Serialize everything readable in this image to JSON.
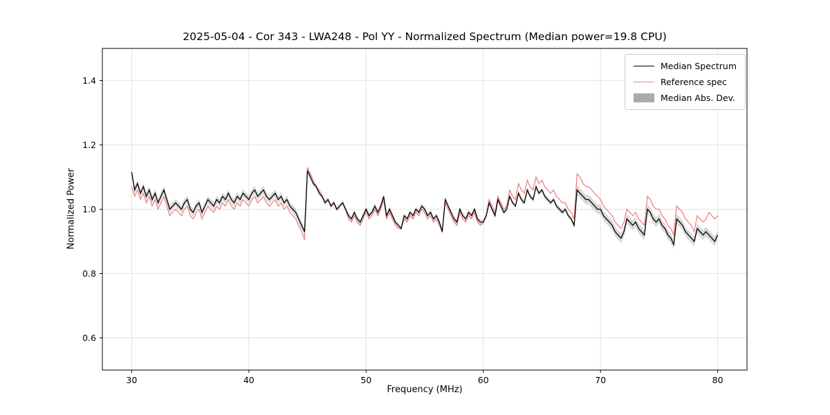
{
  "figure": {
    "title": "2025-05-04 - Cor 343 - LWA248 - Pol YY - Normalized Spectrum (Median power=19.8 CPU)",
    "xlabel": "Frequency (MHz)",
    "ylabel": "Normalized Power",
    "legend": [
      {
        "label": "Median Spectrum",
        "color": "#000000",
        "type": "line"
      },
      {
        "label": "Reference spec",
        "color": "#f08080",
        "type": "line"
      },
      {
        "label": "Median Abs. Dev.",
        "color": "#aaaaaa",
        "type": "patch"
      }
    ]
  },
  "chart_data": {
    "type": "line",
    "title": "2025-05-04 - Cor 343 - LWA248 - Pol YY - Normalized Spectrum (Median power=19.8 CPU)",
    "xlabel": "Frequency (MHz)",
    "ylabel": "Normalized Power",
    "xlim": [
      27.5,
      82.5
    ],
    "ylim": [
      0.5,
      1.5
    ],
    "xticks": [
      30,
      40,
      50,
      60,
      70,
      80
    ],
    "yticks": [
      0.6,
      0.8,
      1.0,
      1.2,
      1.4
    ],
    "grid": true,
    "legend_position": "upper right",
    "x": [
      30.0,
      30.25,
      30.5,
      30.75,
      31.0,
      31.25,
      31.5,
      31.75,
      32.0,
      32.25,
      32.5,
      32.75,
      33.0,
      33.25,
      33.5,
      33.75,
      34.0,
      34.25,
      34.5,
      34.75,
      35.0,
      35.25,
      35.5,
      35.75,
      36.0,
      36.25,
      36.5,
      36.75,
      37.0,
      37.25,
      37.5,
      37.75,
      38.0,
      38.25,
      38.5,
      38.75,
      39.0,
      39.25,
      39.5,
      39.75,
      40.0,
      40.25,
      40.5,
      40.75,
      41.0,
      41.25,
      41.5,
      41.75,
      42.0,
      42.25,
      42.5,
      42.75,
      43.0,
      43.25,
      43.5,
      43.75,
      44.0,
      44.25,
      44.5,
      44.75,
      45.0,
      45.25,
      45.5,
      45.75,
      46.0,
      46.25,
      46.5,
      46.75,
      47.0,
      47.25,
      47.5,
      47.75,
      48.0,
      48.25,
      48.5,
      48.75,
      49.0,
      49.25,
      49.5,
      49.75,
      50.0,
      50.25,
      50.5,
      50.75,
      51.0,
      51.25,
      51.5,
      51.75,
      52.0,
      52.25,
      52.5,
      52.75,
      53.0,
      53.25,
      53.5,
      53.75,
      54.0,
      54.25,
      54.5,
      54.75,
      55.0,
      55.25,
      55.5,
      55.75,
      56.0,
      56.25,
      56.5,
      56.75,
      57.0,
      57.25,
      57.5,
      57.75,
      58.0,
      58.25,
      58.5,
      58.75,
      59.0,
      59.25,
      59.5,
      59.75,
      60.0,
      60.25,
      60.5,
      60.75,
      61.0,
      61.25,
      61.5,
      61.75,
      62.0,
      62.25,
      62.5,
      62.75,
      63.0,
      63.25,
      63.5,
      63.75,
      64.0,
      64.25,
      64.5,
      64.75,
      65.0,
      65.25,
      65.5,
      65.75,
      66.0,
      66.25,
      66.5,
      66.75,
      67.0,
      67.25,
      67.5,
      67.75,
      68.0,
      68.25,
      68.5,
      68.75,
      69.0,
      69.25,
      69.5,
      69.75,
      70.0,
      70.25,
      70.5,
      70.75,
      71.0,
      71.25,
      71.5,
      71.75,
      72.0,
      72.25,
      72.5,
      72.75,
      73.0,
      73.25,
      73.5,
      73.75,
      74.0,
      74.25,
      74.5,
      74.75,
      75.0,
      75.25,
      75.5,
      75.75,
      76.0,
      76.25,
      76.5,
      76.75,
      77.0,
      77.25,
      77.5,
      77.75,
      78.0,
      78.25,
      78.5,
      78.75,
      79.0,
      79.25,
      79.5,
      79.75,
      80.0
    ],
    "series": [
      {
        "name": "Median Spectrum",
        "color": "#000000",
        "values": [
          1.115,
          1.06,
          1.08,
          1.05,
          1.07,
          1.04,
          1.06,
          1.03,
          1.05,
          1.02,
          1.04,
          1.06,
          1.03,
          1.0,
          1.01,
          1.02,
          1.01,
          1.0,
          1.02,
          1.03,
          1.0,
          0.99,
          1.01,
          1.02,
          0.99,
          1.01,
          1.03,
          1.02,
          1.01,
          1.03,
          1.02,
          1.04,
          1.03,
          1.05,
          1.03,
          1.02,
          1.04,
          1.03,
          1.05,
          1.04,
          1.03,
          1.05,
          1.06,
          1.04,
          1.05,
          1.06,
          1.04,
          1.03,
          1.04,
          1.05,
          1.03,
          1.04,
          1.02,
          1.03,
          1.01,
          1.0,
          0.99,
          0.97,
          0.95,
          0.93,
          1.12,
          1.1,
          1.08,
          1.07,
          1.05,
          1.04,
          1.02,
          1.03,
          1.01,
          1.02,
          1.0,
          1.01,
          1.02,
          1.0,
          0.98,
          0.97,
          0.99,
          0.97,
          0.96,
          0.98,
          1.0,
          0.98,
          0.99,
          1.01,
          0.99,
          1.01,
          1.04,
          0.98,
          1.0,
          0.98,
          0.96,
          0.95,
          0.94,
          0.98,
          0.97,
          0.99,
          0.98,
          1.0,
          0.99,
          1.01,
          1.0,
          0.98,
          0.99,
          0.97,
          0.98,
          0.96,
          0.93,
          1.03,
          1.01,
          0.99,
          0.97,
          0.96,
          1.0,
          0.98,
          0.97,
          0.99,
          0.98,
          1.0,
          0.97,
          0.96,
          0.96,
          0.98,
          1.02,
          1.0,
          0.98,
          1.03,
          1.01,
          0.99,
          1.0,
          1.04,
          1.02,
          1.01,
          1.05,
          1.03,
          1.02,
          1.06,
          1.04,
          1.03,
          1.07,
          1.05,
          1.06,
          1.04,
          1.03,
          1.02,
          1.03,
          1.01,
          1.0,
          0.99,
          1.0,
          0.98,
          0.97,
          0.95,
          1.06,
          1.05,
          1.04,
          1.03,
          1.03,
          1.02,
          1.01,
          1.0,
          1.0,
          0.98,
          0.97,
          0.96,
          0.95,
          0.93,
          0.92,
          0.91,
          0.93,
          0.97,
          0.96,
          0.95,
          0.96,
          0.94,
          0.93,
          0.92,
          1.0,
          0.99,
          0.97,
          0.96,
          0.97,
          0.95,
          0.94,
          0.92,
          0.91,
          0.89,
          0.97,
          0.96,
          0.95,
          0.93,
          0.92,
          0.91,
          0.9,
          0.94,
          0.93,
          0.92,
          0.93,
          0.92,
          0.91,
          0.9,
          0.92
        ]
      },
      {
        "name": "Reference spec",
        "color": "#f08080",
        "values": [
          1.07,
          1.04,
          1.06,
          1.03,
          1.05,
          1.02,
          1.04,
          1.01,
          1.03,
          1.0,
          1.02,
          1.04,
          1.01,
          0.98,
          0.99,
          1.0,
          0.99,
          0.98,
          1.0,
          1.01,
          0.98,
          0.97,
          0.99,
          1.0,
          0.97,
          0.99,
          1.01,
          1.0,
          0.99,
          1.01,
          1.0,
          1.02,
          1.01,
          1.03,
          1.01,
          1.0,
          1.02,
          1.01,
          1.03,
          1.02,
          1.01,
          1.03,
          1.04,
          1.02,
          1.03,
          1.04,
          1.02,
          1.01,
          1.02,
          1.03,
          1.01,
          1.02,
          1.0,
          1.01,
          0.99,
          0.98,
          0.97,
          0.95,
          0.93,
          0.905,
          1.13,
          1.11,
          1.09,
          1.07,
          1.06,
          1.04,
          1.02,
          1.03,
          1.01,
          1.02,
          1.0,
          1.01,
          1.02,
          1.0,
          0.97,
          0.96,
          0.98,
          0.96,
          0.95,
          0.97,
          0.99,
          0.97,
          0.98,
          1.0,
          0.98,
          1.0,
          1.03,
          0.97,
          0.99,
          0.97,
          0.95,
          0.94,
          0.94,
          0.97,
          0.96,
          0.98,
          0.97,
          0.99,
          0.98,
          1.0,
          0.99,
          0.97,
          0.98,
          0.96,
          0.97,
          0.95,
          0.93,
          1.02,
          1.0,
          0.98,
          0.96,
          0.95,
          0.99,
          0.97,
          0.96,
          0.98,
          0.97,
          0.99,
          0.96,
          0.95,
          0.96,
          0.98,
          1.03,
          1.01,
          0.99,
          1.04,
          1.02,
          1.0,
          1.01,
          1.06,
          1.04,
          1.03,
          1.08,
          1.06,
          1.05,
          1.09,
          1.07,
          1.06,
          1.1,
          1.08,
          1.09,
          1.07,
          1.06,
          1.05,
          1.06,
          1.04,
          1.03,
          1.02,
          1.02,
          1.0,
          0.99,
          0.97,
          1.11,
          1.1,
          1.08,
          1.07,
          1.07,
          1.06,
          1.05,
          1.04,
          1.03,
          1.01,
          1.0,
          0.99,
          0.98,
          0.96,
          0.95,
          0.94,
          0.96,
          1.0,
          0.99,
          0.98,
          0.99,
          0.97,
          0.96,
          0.95,
          1.04,
          1.03,
          1.01,
          1.0,
          1.0,
          0.98,
          0.97,
          0.95,
          0.94,
          0.92,
          1.01,
          1.0,
          0.99,
          0.97,
          0.96,
          0.95,
          0.93,
          0.98,
          0.97,
          0.96,
          0.97,
          0.99,
          0.98,
          0.97,
          0.98
        ]
      },
      {
        "name": "Median Abs. Dev.",
        "color": "#aaaaaa",
        "band_half_width": [
          0.012,
          0.012,
          0.012,
          0.012,
          0.012,
          0.012,
          0.012,
          0.012,
          0.012,
          0.012,
          0.012,
          0.012,
          0.012,
          0.012,
          0.012,
          0.012,
          0.012,
          0.012,
          0.012,
          0.012,
          0.012,
          0.012,
          0.012,
          0.012,
          0.012,
          0.012,
          0.012,
          0.012,
          0.012,
          0.012,
          0.012,
          0.012,
          0.012,
          0.012,
          0.012,
          0.012,
          0.012,
          0.012,
          0.012,
          0.012,
          0.012,
          0.012,
          0.012,
          0.012,
          0.012,
          0.012,
          0.012,
          0.012,
          0.012,
          0.012,
          0.012,
          0.012,
          0.012,
          0.012,
          0.012,
          0.012,
          0.012,
          0.012,
          0.012,
          0.012,
          0.008,
          0.008,
          0.008,
          0.008,
          0.008,
          0.008,
          0.008,
          0.008,
          0.008,
          0.008,
          0.008,
          0.008,
          0.008,
          0.008,
          0.008,
          0.008,
          0.008,
          0.008,
          0.008,
          0.008,
          0.008,
          0.008,
          0.008,
          0.008,
          0.008,
          0.008,
          0.008,
          0.008,
          0.008,
          0.008,
          0.008,
          0.008,
          0.008,
          0.008,
          0.008,
          0.008,
          0.008,
          0.008,
          0.008,
          0.008,
          0.008,
          0.008,
          0.008,
          0.008,
          0.008,
          0.008,
          0.008,
          0.008,
          0.008,
          0.008,
          0.008,
          0.008,
          0.008,
          0.008,
          0.008,
          0.008,
          0.008,
          0.008,
          0.008,
          0.008,
          0.008,
          0.008,
          0.008,
          0.008,
          0.008,
          0.008,
          0.008,
          0.008,
          0.008,
          0.008,
          0.008,
          0.008,
          0.008,
          0.008,
          0.008,
          0.008,
          0.008,
          0.008,
          0.008,
          0.008,
          0.008,
          0.008,
          0.008,
          0.008,
          0.008,
          0.008,
          0.008,
          0.008,
          0.008,
          0.008,
          0.008,
          0.008,
          0.015,
          0.015,
          0.015,
          0.015,
          0.015,
          0.015,
          0.015,
          0.015,
          0.015,
          0.015,
          0.015,
          0.015,
          0.015,
          0.015,
          0.015,
          0.015,
          0.015,
          0.015,
          0.015,
          0.015,
          0.015,
          0.015,
          0.015,
          0.015,
          0.015,
          0.015,
          0.015,
          0.015,
          0.015,
          0.015,
          0.015,
          0.015,
          0.015,
          0.015,
          0.015,
          0.015,
          0.015,
          0.015,
          0.015,
          0.015,
          0.015,
          0.015,
          0.015,
          0.015,
          0.015,
          0.015,
          0.015,
          0.015,
          0.015
        ]
      }
    ]
  }
}
